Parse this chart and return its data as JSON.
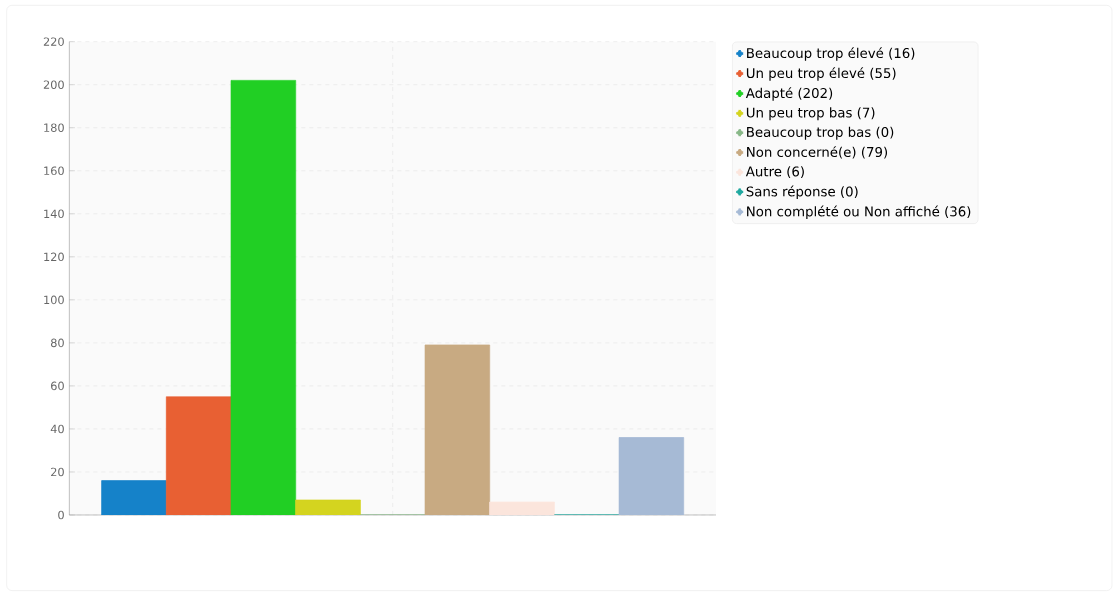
{
  "chart_data": {
    "type": "bar",
    "categories": [
      null
    ],
    "series": [
      {
        "name": "Beaucoup trop élevé (16)",
        "color": "#1582c9",
        "values": [
          16
        ]
      },
      {
        "name": "Un peu trop élevé (55)",
        "color": "#e86033",
        "values": [
          55
        ]
      },
      {
        "name": "Adapté (202)",
        "color": "#21cf24",
        "values": [
          202
        ]
      },
      {
        "name": "Un peu trop bas (7)",
        "color": "#d4d41f",
        "values": [
          7
        ]
      },
      {
        "name": "Beaucoup trop bas (0)",
        "color": "#88b888",
        "values": [
          0
        ]
      },
      {
        "name": "Non concerné(e) (79)",
        "color": "#c8aa82",
        "values": [
          79
        ]
      },
      {
        "name": "Autre (6)",
        "color": "#fbe5dc",
        "values": [
          6
        ]
      },
      {
        "name": "Sans réponse (0)",
        "color": "#1fa8a0",
        "values": [
          0
        ]
      },
      {
        "name": "Non complété ou Non affiché (36)",
        "color": "#a6bad5",
        "values": [
          36
        ]
      }
    ],
    "ylim": [
      0,
      220
    ],
    "yticks": [
      0,
      20,
      40,
      60,
      80,
      100,
      120,
      140,
      160,
      180,
      200,
      220
    ],
    "grid": true,
    "legend": "right",
    "tick_labels": "y"
  }
}
